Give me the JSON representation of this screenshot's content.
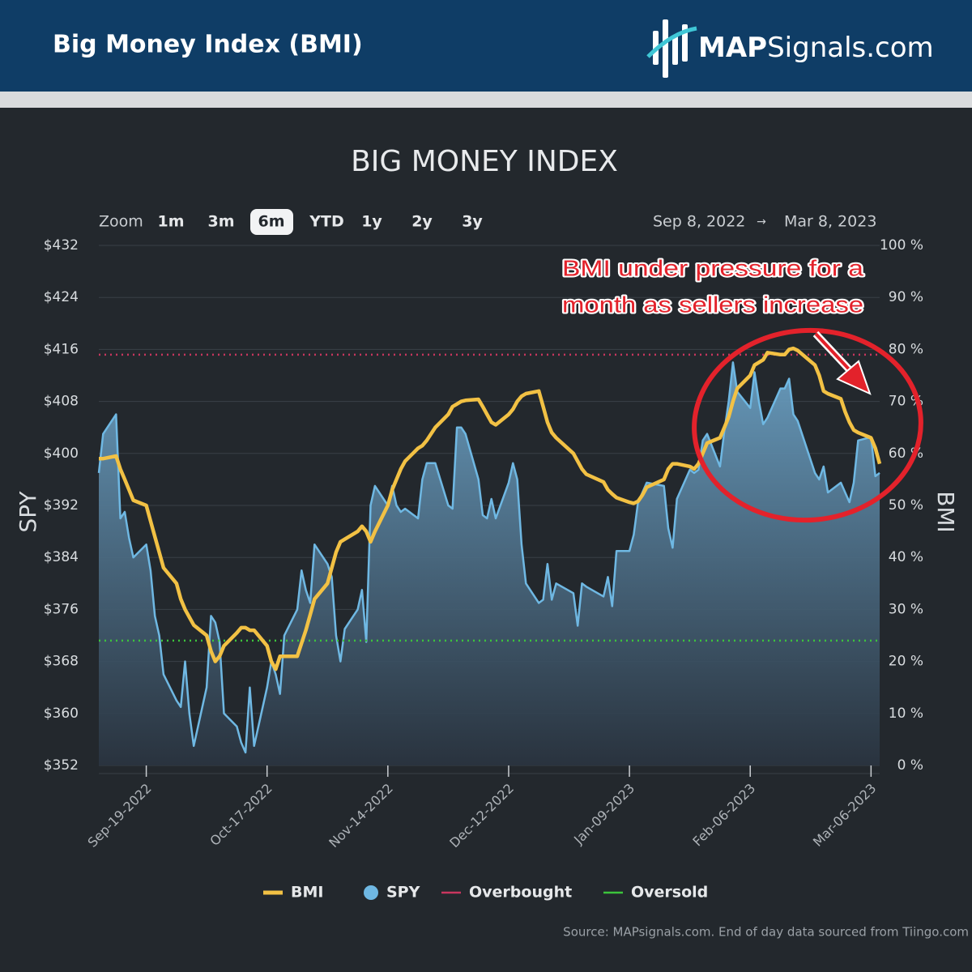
{
  "header": {
    "title": "Big Money Index (BMI)",
    "logo_bold": "MAP",
    "logo_rest": "Signals.com"
  },
  "chart_data": {
    "type": "line",
    "title": "BIG MONEY INDEX",
    "zoom": {
      "label": "Zoom",
      "options": [
        "1m",
        "3m",
        "6m",
        "YTD",
        "1y",
        "2y",
        "3y"
      ],
      "selected": "6m"
    },
    "range": {
      "from": "Sep 8, 2022",
      "arrow": "→",
      "to": "Mar 8, 2023"
    },
    "ylabel": "SPY",
    "y2label": "BMI",
    "x": [
      "2022-09-08",
      "2022-09-09",
      "2022-09-12",
      "2022-09-13",
      "2022-09-14",
      "2022-09-15",
      "2022-09-16",
      "2022-09-19",
      "2022-09-20",
      "2022-09-21",
      "2022-09-22",
      "2022-09-23",
      "2022-09-26",
      "2022-09-27",
      "2022-09-28",
      "2022-09-29",
      "2022-09-30",
      "2022-10-03",
      "2022-10-04",
      "2022-10-05",
      "2022-10-06",
      "2022-10-07",
      "2022-10-10",
      "2022-10-11",
      "2022-10-12",
      "2022-10-13",
      "2022-10-14",
      "2022-10-17",
      "2022-10-18",
      "2022-10-19",
      "2022-10-20",
      "2022-10-21",
      "2022-10-24",
      "2022-10-25",
      "2022-10-26",
      "2022-10-27",
      "2022-10-28",
      "2022-10-31",
      "2022-11-01",
      "2022-11-02",
      "2022-11-03",
      "2022-11-04",
      "2022-11-07",
      "2022-11-08",
      "2022-11-09",
      "2022-11-10",
      "2022-11-11",
      "2022-11-14",
      "2022-11-15",
      "2022-11-16",
      "2022-11-17",
      "2022-11-18",
      "2022-11-21",
      "2022-11-22",
      "2022-11-23",
      "2022-11-25",
      "2022-11-28",
      "2022-11-29",
      "2022-11-30",
      "2022-12-01",
      "2022-12-02",
      "2022-12-05",
      "2022-12-06",
      "2022-12-07",
      "2022-12-08",
      "2022-12-09",
      "2022-12-12",
      "2022-12-13",
      "2022-12-14",
      "2022-12-15",
      "2022-12-16",
      "2022-12-19",
      "2022-12-20",
      "2022-12-21",
      "2022-12-22",
      "2022-12-23",
      "2022-12-27",
      "2022-12-28",
      "2022-12-29",
      "2022-12-30",
      "2023-01-03",
      "2023-01-04",
      "2023-01-05",
      "2023-01-06",
      "2023-01-09",
      "2023-01-10",
      "2023-01-11",
      "2023-01-12",
      "2023-01-13",
      "2023-01-17",
      "2023-01-18",
      "2023-01-19",
      "2023-01-20",
      "2023-01-23",
      "2023-01-24",
      "2023-01-25",
      "2023-01-26",
      "2023-01-27",
      "2023-01-30",
      "2023-01-31",
      "2023-02-01",
      "2023-02-02",
      "2023-02-03",
      "2023-02-06",
      "2023-02-07",
      "2023-02-08",
      "2023-02-09",
      "2023-02-10",
      "2023-02-13",
      "2023-02-14",
      "2023-02-15",
      "2023-02-16",
      "2023-02-17",
      "2023-02-21",
      "2023-02-22",
      "2023-02-23",
      "2023-02-24",
      "2023-02-27",
      "2023-02-28",
      "2023-03-01",
      "2023-03-02",
      "2023-03-03",
      "2023-03-06",
      "2023-03-07",
      "2023-03-08"
    ],
    "xlim": [
      "2022-09-08",
      "2023-03-08"
    ],
    "xticks": [
      {
        "value": "2022-09-19",
        "label": "Sep-19-2022"
      },
      {
        "value": "2022-10-17",
        "label": "Oct-17-2022"
      },
      {
        "value": "2022-11-14",
        "label": "Nov-14-2022"
      },
      {
        "value": "2022-12-12",
        "label": "Dec-12-2022"
      },
      {
        "value": "2023-01-09",
        "label": "Jan-09-2023"
      },
      {
        "value": "2023-02-06",
        "label": "Feb-06-2023"
      },
      {
        "value": "2023-03-06",
        "label": "Mar-06-2023"
      }
    ],
    "ylim": [
      352,
      432
    ],
    "yticks": [
      {
        "value": 352,
        "label": "$352"
      },
      {
        "value": 360,
        "label": "$360"
      },
      {
        "value": 368,
        "label": "$368"
      },
      {
        "value": 376,
        "label": "$376"
      },
      {
        "value": 384,
        "label": "$384"
      },
      {
        "value": 392,
        "label": "$392"
      },
      {
        "value": 400,
        "label": "$400"
      },
      {
        "value": 408,
        "label": "$408"
      },
      {
        "value": 416,
        "label": "$416"
      },
      {
        "value": 424,
        "label": "$424"
      },
      {
        "value": 432,
        "label": "$432"
      }
    ],
    "y2lim": [
      0,
      100
    ],
    "y2ticks": [
      {
        "value": 0,
        "label": "0 %"
      },
      {
        "value": 10,
        "label": "10 %"
      },
      {
        "value": 20,
        "label": "20 %"
      },
      {
        "value": 30,
        "label": "30 %"
      },
      {
        "value": 40,
        "label": "40 %"
      },
      {
        "value": 50,
        "label": "50 %"
      },
      {
        "value": 60,
        "label": "60 %"
      },
      {
        "value": 70,
        "label": "70 %"
      },
      {
        "value": 80,
        "label": "80 %"
      },
      {
        "value": 90,
        "label": "90 %"
      },
      {
        "value": 100,
        "label": "100 %"
      }
    ],
    "grid": true,
    "series": [
      {
        "name": "SPY",
        "color": "#6fb8e3",
        "area": true,
        "values": [
          397,
          403,
          406,
          390,
          391,
          387,
          384,
          386,
          382,
          375,
          372,
          366,
          362,
          361,
          368,
          360,
          355,
          364,
          375,
          374,
          371,
          360,
          358,
          355.5,
          354,
          364,
          355,
          364,
          368,
          366,
          363,
          372,
          376,
          382,
          379,
          377,
          386,
          383,
          381,
          372,
          368,
          373,
          376,
          379,
          371,
          392,
          395,
          392,
          395,
          392,
          391,
          391.5,
          390,
          396,
          398.5,
          398.5,
          392,
          391.5,
          404,
          404,
          403,
          396,
          390.5,
          390,
          393,
          390,
          395.5,
          398.5,
          396,
          386,
          380,
          377,
          377.5,
          383,
          377.5,
          380,
          378.5,
          373.5,
          380,
          379.5,
          378,
          381,
          376.5,
          385,
          385,
          387.5,
          392.5,
          394,
          395.5,
          395,
          388.5,
          385.5,
          393,
          397.5,
          397,
          397.5,
          402,
          403,
          398,
          403.5,
          408,
          414,
          409.5,
          407,
          412.5,
          408,
          404.5,
          405.5,
          410,
          410,
          411.5,
          406,
          405,
          397,
          396,
          398,
          394,
          395.5,
          394,
          392.5,
          395.5,
          402,
          402.5,
          396.5,
          397
        ]
      },
      {
        "name": "BMI",
        "color": "#f2c144",
        "axis": "y2",
        "values": [
          59,
          59,
          59.5,
          57,
          55,
          53,
          51,
          50,
          47,
          44,
          41,
          38,
          35,
          32,
          30,
          28.5,
          27,
          25,
          22,
          20,
          21,
          23,
          25.5,
          26.5,
          26.5,
          26,
          26,
          23,
          20,
          18.5,
          21,
          21,
          21,
          23.5,
          26,
          29,
          32,
          35,
          38,
          41,
          43,
          43.5,
          45,
          46,
          45,
          43,
          45,
          50,
          53,
          55,
          57,
          58.5,
          61,
          61.5,
          62.5,
          65,
          67.5,
          69,
          69.5,
          70,
          70.2,
          70.4,
          69,
          67.5,
          66,
          65.5,
          67.5,
          68.5,
          70,
          71,
          71.5,
          72,
          69,
          66,
          64,
          63,
          60,
          58.5,
          57,
          56,
          54.5,
          53,
          52.2,
          51.5,
          50.6,
          50.4,
          50.8,
          52,
          53.5,
          55,
          57,
          58,
          58,
          57.5,
          57,
          58,
          60,
          62,
          63,
          65,
          67,
          70,
          72.5,
          75,
          77,
          77.5,
          78,
          79.4,
          79,
          79,
          80,
          80.2,
          79.8,
          77,
          75,
          72,
          71.5,
          70.5,
          68,
          66,
          64.5,
          64,
          63,
          61,
          58
        ]
      }
    ],
    "reference_lines": [
      {
        "name": "Overbought",
        "color": "#c8365e",
        "axis": "y2",
        "value": 79
      },
      {
        "name": "Oversold",
        "color": "#3cc43c",
        "axis": "y2",
        "value": 24
      }
    ],
    "annotation": {
      "lines": [
        "BMI under pressure for a",
        "month as sellers increase"
      ],
      "color": "#e3222b"
    },
    "source": "Source: MAPsignals.com. End of day data sourced from Tiingo.com"
  }
}
